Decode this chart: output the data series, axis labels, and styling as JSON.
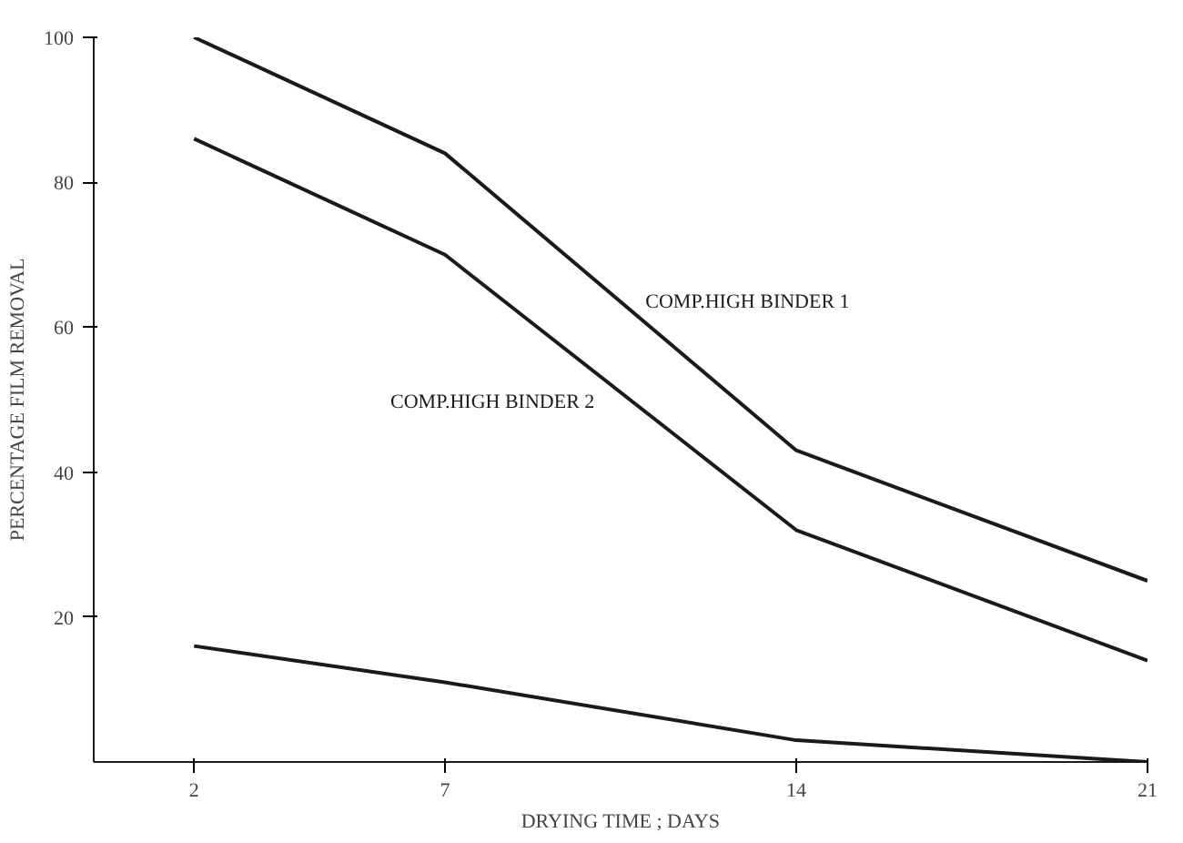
{
  "chart_data": {
    "type": "line",
    "xlabel": "DRYING TIME ; DAYS",
    "ylabel": "PERCENTAGE FILM REMOVAL",
    "x": [
      2,
      7,
      14,
      21
    ],
    "xlim": [
      0,
      21
    ],
    "xticks": [
      2,
      7,
      14,
      21
    ],
    "ylim": [
      0,
      100
    ],
    "yticks": [
      20,
      40,
      60,
      80,
      100
    ],
    "grid": false,
    "marker": "none",
    "line_style": "solid",
    "series": [
      {
        "name": "COMP.HIGH BINDER 1",
        "color": "#1a1a1a",
        "values": [
          100,
          84,
          43,
          25
        ]
      },
      {
        "name": "COMP.HIGH BINDER 2",
        "color": "#1a1a1a",
        "values": [
          86,
          70,
          32,
          14
        ]
      },
      {
        "color": "#1a1a1a",
        "values": [
          16,
          11,
          3,
          0
        ]
      }
    ]
  }
}
